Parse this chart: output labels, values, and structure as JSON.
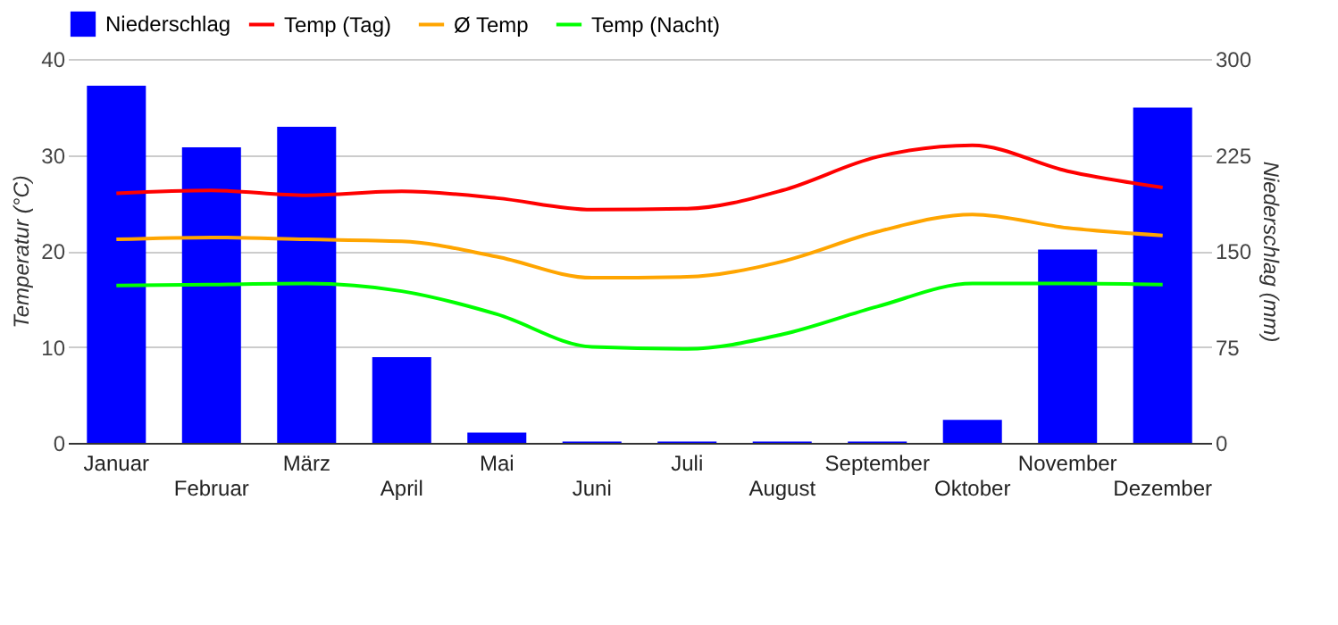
{
  "chart_data": {
    "type": "bar",
    "categories": [
      "Januar",
      "Februar",
      "März",
      "April",
      "Mai",
      "Juni",
      "Juli",
      "August",
      "September",
      "Oktober",
      "November",
      "Dezember"
    ],
    "series": [
      {
        "name": "Niederschlag",
        "axis": "y2",
        "color": "#0000ff",
        "values": [
          279,
          231,
          247,
          67,
          8,
          1,
          1,
          1,
          1,
          18,
          151,
          262
        ]
      },
      {
        "name": "Temp (Tag)",
        "type": "line",
        "axis": "y",
        "color": "#ff0000",
        "values": [
          26,
          26.3,
          25.8,
          26.2,
          25.5,
          24.3,
          24.4,
          26.3,
          29.8,
          31,
          28.3,
          26.6
        ]
      },
      {
        "name": "Ø Temp",
        "type": "line",
        "axis": "y",
        "color": "#ffa500",
        "values": [
          21.2,
          21.4,
          21.2,
          21,
          19.4,
          17.2,
          17.3,
          18.9,
          22,
          23.8,
          22.4,
          21.6
        ]
      },
      {
        "name": "Temp (Nacht)",
        "type": "line",
        "axis": "y",
        "color": "#00ff00",
        "values": [
          16.4,
          16.5,
          16.6,
          15.8,
          13.4,
          10,
          9.8,
          11.3,
          14.2,
          16.6,
          16.6,
          16.5
        ]
      }
    ],
    "ylabel": "Temperatur (°C)",
    "y2label": "Niederschlag (mm)",
    "ylim": [
      0,
      40
    ],
    "yticks": [
      0,
      10,
      20,
      30,
      40
    ],
    "y2lim": [
      0,
      300
    ],
    "y2ticks": [
      0,
      75,
      150,
      225,
      300
    ],
    "grid": "y",
    "legend": "top left"
  }
}
